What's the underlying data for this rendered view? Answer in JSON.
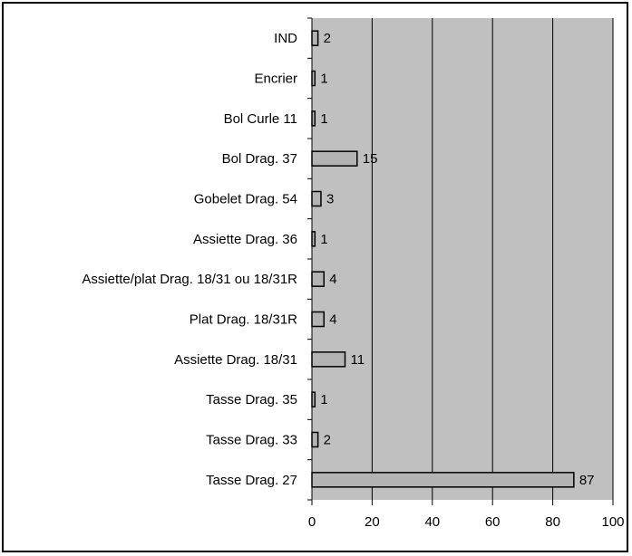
{
  "chart_data": {
    "type": "bar",
    "orientation": "horizontal",
    "categories": [
      "IND",
      "Encrier",
      "Bol Curle 11",
      "Bol Drag. 37",
      "Gobelet Drag. 54",
      "Assiette Drag. 36",
      "Assiette/plat Drag. 18/31 ou 18/31R",
      "Plat Drag. 18/31R",
      "Assiette Drag. 18/31",
      "Tasse Drag. 35",
      "Tasse Drag. 33",
      "Tasse Drag. 27"
    ],
    "values": [
      2,
      1,
      1,
      15,
      3,
      1,
      4,
      4,
      11,
      1,
      2,
      87
    ],
    "title": "",
    "xlabel": "",
    "ylabel": "",
    "xlim": [
      0,
      100
    ],
    "xticks": [
      0,
      20,
      40,
      60,
      80,
      100
    ],
    "grid": true,
    "legend": "none",
    "colors": {
      "plot_background": "#c0c0c0",
      "bar_fill": "#b3b3b3",
      "bar_stroke": "#000000"
    }
  }
}
